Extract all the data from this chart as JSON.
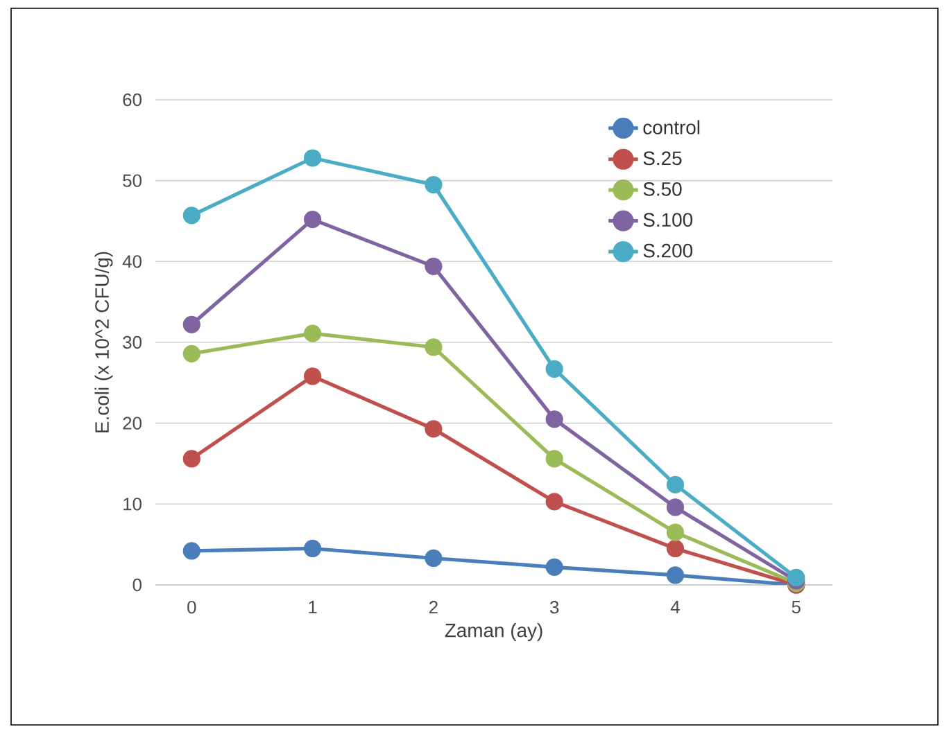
{
  "chart_data": {
    "type": "line",
    "xlabel": "Zaman (ay)",
    "ylabel": "E.coli (x 10^2 CFU/g)",
    "x": [
      0,
      1,
      2,
      3,
      4,
      5
    ],
    "xlim": [
      -0.3,
      5.3
    ],
    "xticks": [
      0,
      1,
      2,
      3,
      4,
      5
    ],
    "ylim": [
      0,
      60
    ],
    "yticks": [
      0,
      10,
      20,
      30,
      40,
      50,
      60
    ],
    "grid": "y",
    "legend": "top right",
    "marker": "circle",
    "line_style": "solid",
    "series": [
      {
        "name": "control",
        "color": "#4a7ebb",
        "values": [
          4.2,
          4.5,
          3.3,
          2.2,
          1.2,
          0
        ]
      },
      {
        "name": "S.25",
        "color": "#c0504d",
        "values": [
          15.6,
          25.8,
          19.3,
          10.3,
          4.5,
          0
        ]
      },
      {
        "name": "S.50",
        "color": "#9bbb59",
        "values": [
          28.6,
          31.1,
          29.4,
          15.6,
          6.5,
          0.2
        ]
      },
      {
        "name": "S.100",
        "color": "#8064a2",
        "values": [
          32.2,
          45.2,
          39.4,
          20.5,
          9.6,
          0.5
        ]
      },
      {
        "name": "S.200",
        "color": "#4bacc6",
        "values": [
          45.7,
          52.8,
          49.5,
          26.7,
          12.4,
          0.9
        ]
      }
    ]
  }
}
